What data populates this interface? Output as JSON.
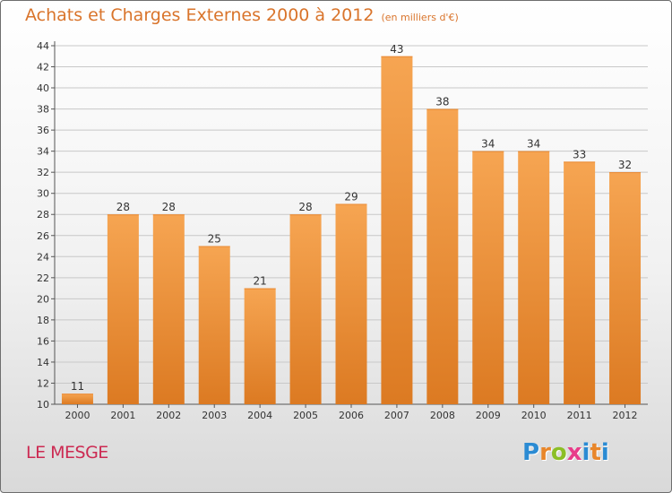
{
  "header": {
    "title": "Achats et Charges Externes 2000 à 2012",
    "unit": "(en milliers d'€)"
  },
  "footer": {
    "place": "LE MESGE",
    "logo_letters": [
      "P",
      "r",
      "o",
      "x",
      "i",
      "t",
      "i"
    ],
    "logo_colors": [
      "#2b8bd3",
      "#e8862a",
      "#8cbf26",
      "#e83c8a",
      "#2b8bd3",
      "#e8862a",
      "#2b8bd3"
    ]
  },
  "colors": {
    "bar_light": "#f6a552",
    "bar_dark": "#dc7a22",
    "axis": "#555555",
    "grid": "#c8c8c8"
  },
  "chart_data": {
    "type": "bar",
    "title": "Achats et Charges Externes 2000 à 2012",
    "categories": [
      "2000",
      "2001",
      "2002",
      "2003",
      "2004",
      "2005",
      "2006",
      "2007",
      "2008",
      "2009",
      "2010",
      "2011",
      "2012"
    ],
    "values": [
      11,
      28,
      28,
      25,
      21,
      28,
      29,
      43,
      38,
      34,
      34,
      33,
      32
    ],
    "ylim": [
      10,
      44
    ],
    "yticks": [
      10,
      12,
      14,
      16,
      18,
      20,
      22,
      24,
      26,
      28,
      30,
      32,
      34,
      36,
      38,
      40,
      42,
      44
    ],
    "grid": true,
    "xlabel": "",
    "ylabel": ""
  }
}
